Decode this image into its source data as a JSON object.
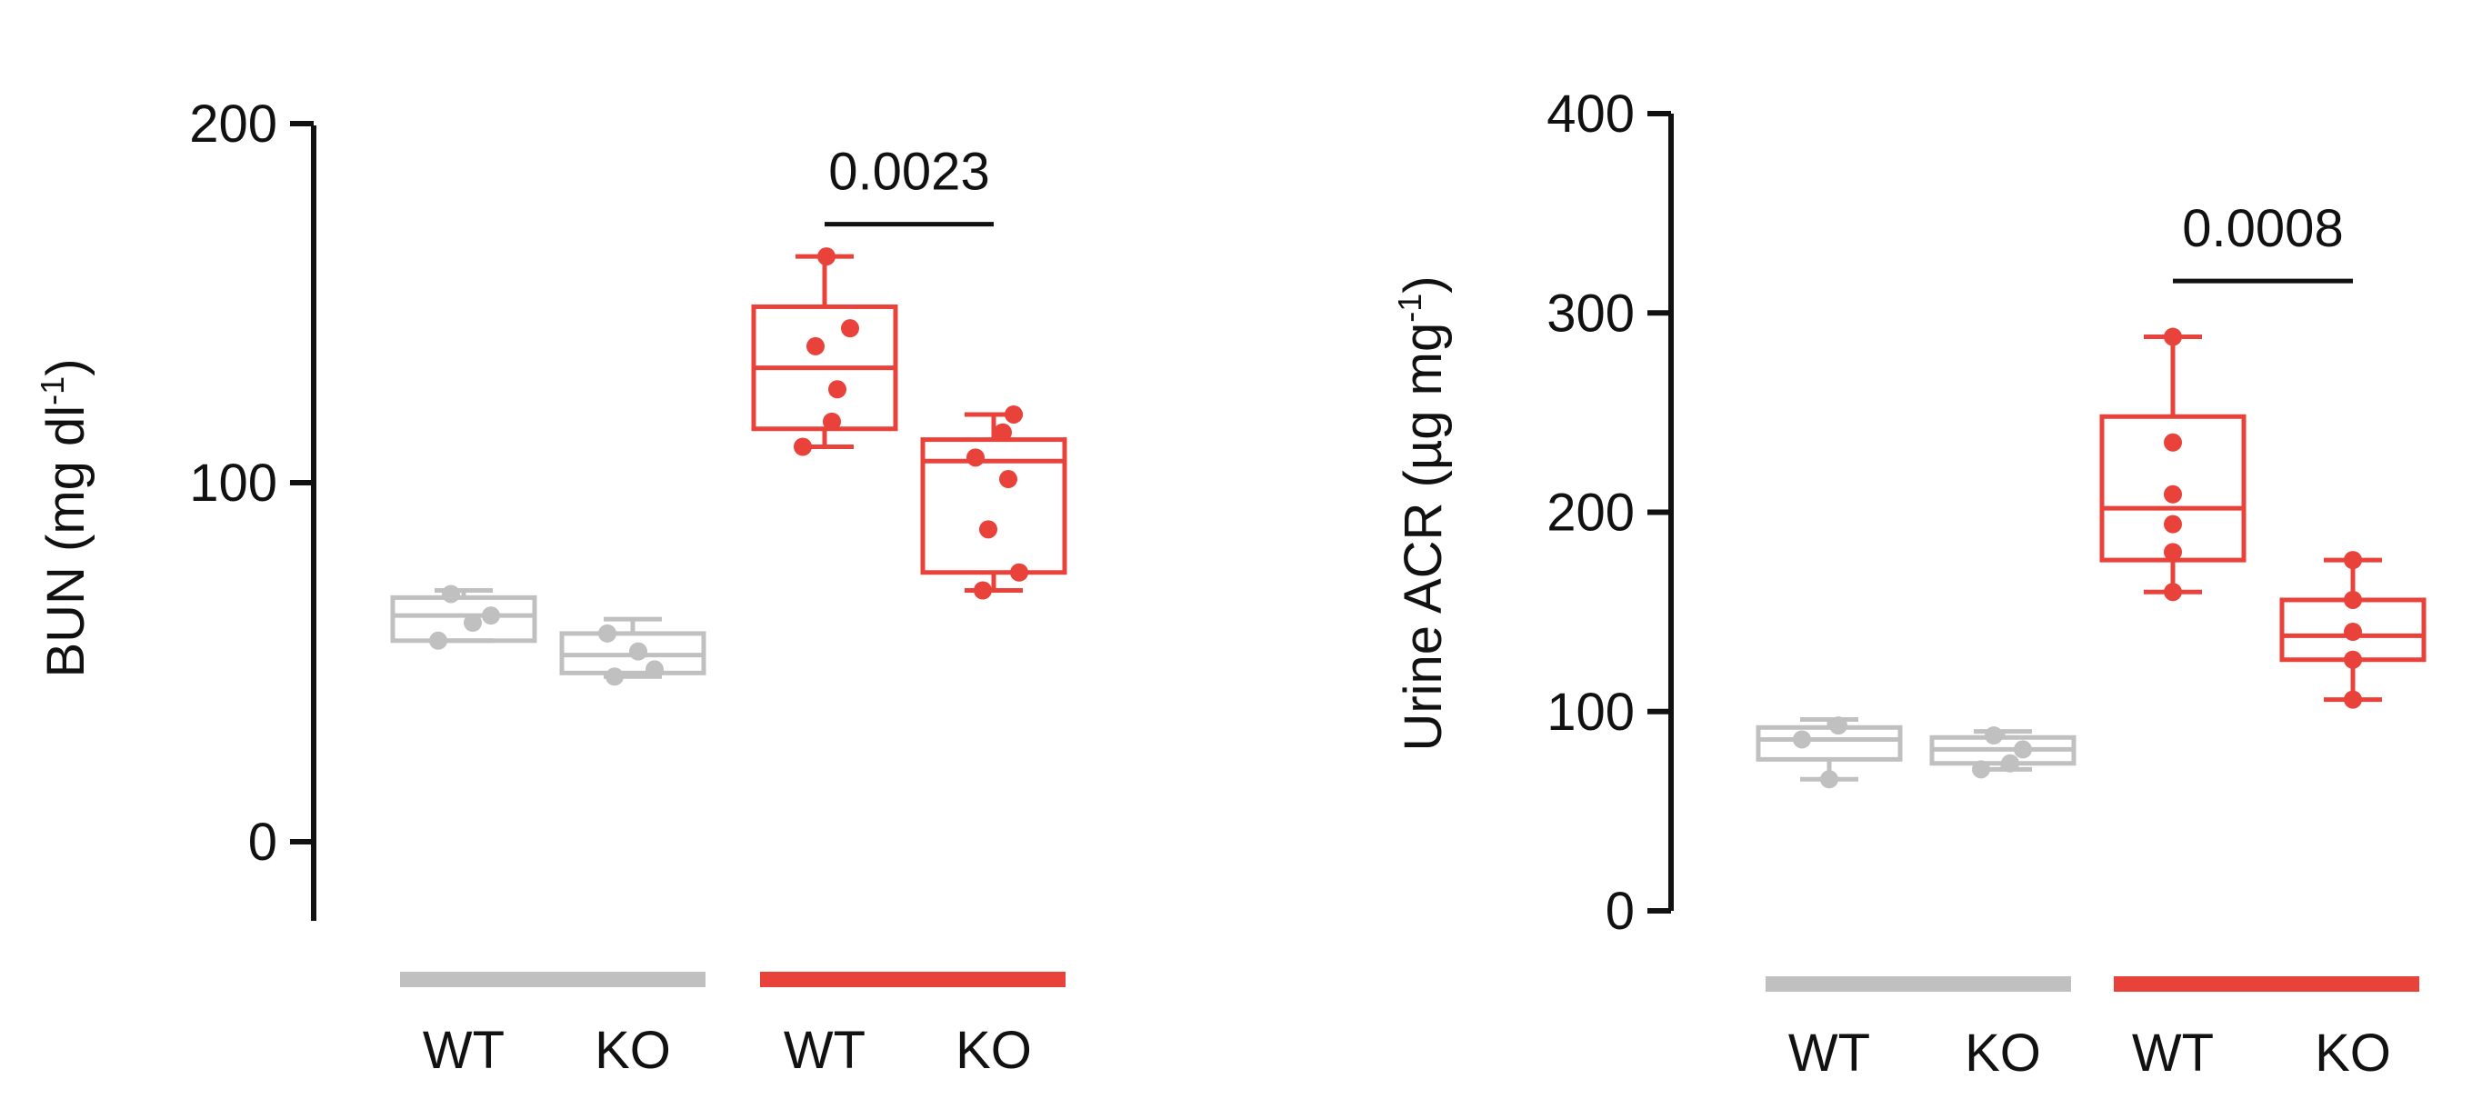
{
  "colors": {
    "control": "#c0c0c0",
    "treated": "#e8423a",
    "axis": "#111111"
  },
  "chart_data": [
    {
      "type": "box",
      "ylabel_main": "BUN (mg dl",
      "ylabel_sup": "-1",
      "ylabel_close": ")",
      "ylim": [
        -18,
        200
      ],
      "yticks": [
        "0",
        "100",
        "200"
      ],
      "ytick_values": [
        0,
        100,
        200
      ],
      "group_labels": [
        "WT",
        "KO",
        "WT",
        "KO"
      ],
      "bracket_label": "0.0023",
      "bracket_value": 172,
      "boxes": [
        {
          "group": "control",
          "label": "WT",
          "min": 56,
          "q1": 56,
          "median": 63,
          "q3": 68,
          "max": 70,
          "points": [
            56,
            61,
            63,
            69
          ]
        },
        {
          "group": "control",
          "label": "KO",
          "min": 46,
          "q1": 47,
          "median": 52,
          "q3": 58,
          "max": 62,
          "points": [
            46,
            48,
            53,
            58
          ]
        },
        {
          "group": "treated",
          "label": "WT",
          "min": 110,
          "q1": 115,
          "median": 132,
          "q3": 149,
          "max": 163,
          "points": [
            110,
            117,
            126,
            138,
            143,
            163
          ]
        },
        {
          "group": "treated",
          "label": "KO",
          "min": 70,
          "q1": 75,
          "median": 106,
          "q3": 112,
          "max": 119,
          "points": [
            70,
            75,
            87,
            101,
            107,
            114,
            119
          ]
        }
      ]
    },
    {
      "type": "box",
      "ylabel_main": "Urine ACR (µg mg",
      "ylabel_sup": "-1",
      "ylabel_close": ")",
      "ylim": [
        0,
        400
      ],
      "yticks": [
        "0",
        "100",
        "200",
        "300",
        "400"
      ],
      "ytick_values": [
        0,
        100,
        200,
        300,
        400
      ],
      "group_labels": [
        "WT",
        "KO",
        "WT",
        "KO"
      ],
      "bracket_label": "0.0008",
      "bracket_value": 316,
      "boxes": [
        {
          "group": "control",
          "label": "WT",
          "min": 66,
          "q1": 76,
          "median": 86,
          "q3": 92,
          "max": 96,
          "points": [
            66,
            86,
            93
          ]
        },
        {
          "group": "control",
          "label": "KO",
          "min": 71,
          "q1": 74,
          "median": 81,
          "q3": 87,
          "max": 90,
          "points": [
            71,
            74,
            81,
            88
          ]
        },
        {
          "group": "treated",
          "label": "WT",
          "min": 160,
          "q1": 176,
          "median": 202,
          "q3": 248,
          "max": 288,
          "points": [
            160,
            180,
            194,
            209,
            235,
            288
          ]
        },
        {
          "group": "treated",
          "label": "KO",
          "min": 106,
          "q1": 126,
          "median": 138,
          "q3": 156,
          "max": 176,
          "points": [
            106,
            126,
            140,
            156,
            176
          ]
        }
      ]
    }
  ]
}
